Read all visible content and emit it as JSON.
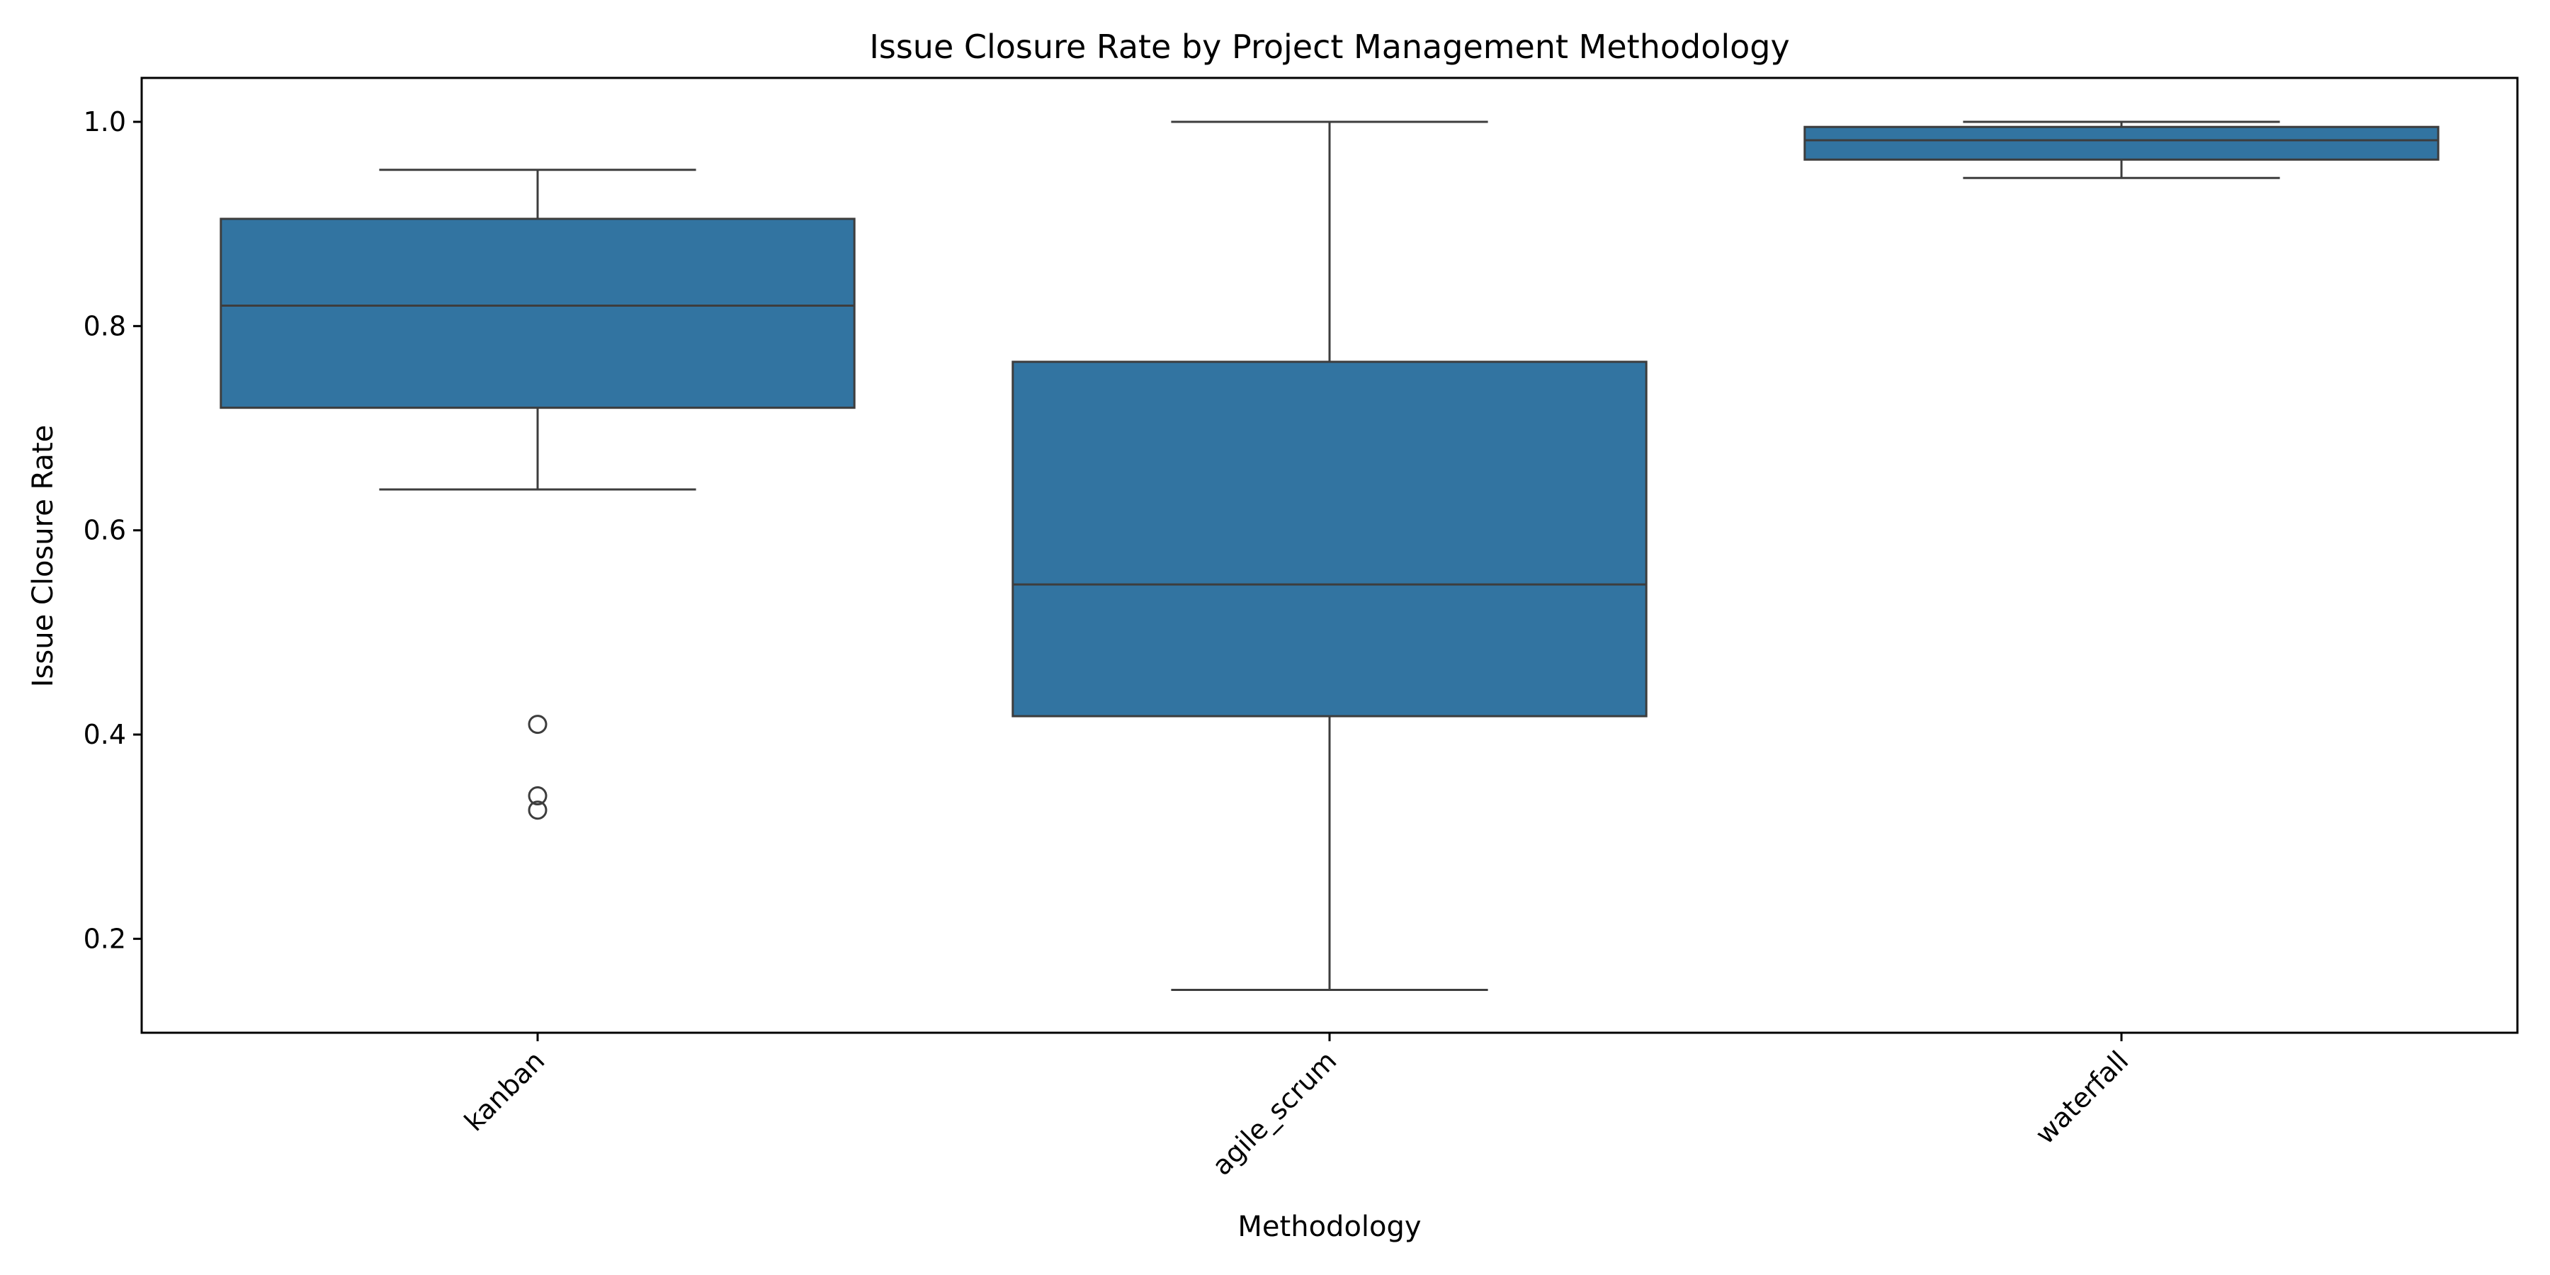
{
  "chart_data": {
    "type": "box",
    "title": "Issue Closure Rate by Project Management Methodology",
    "xlabel": "Methodology",
    "ylabel": "Issue Closure Rate",
    "ylim": [
      0.108,
      1.043
    ],
    "yticks": [
      0.2,
      0.4,
      0.6,
      0.8,
      1.0
    ],
    "ytick_labels": [
      "0.2",
      "0.4",
      "0.6",
      "0.8",
      "1.0"
    ],
    "grid": false,
    "legend": "none",
    "categories": [
      "kanban",
      "agile_scrum",
      "waterfall"
    ],
    "boxes": [
      {
        "category": "kanban",
        "whisker_low": 0.64,
        "q1": 0.72,
        "median": 0.82,
        "q3": 0.905,
        "whisker_high": 0.953,
        "outliers": [
          0.41,
          0.34,
          0.326
        ]
      },
      {
        "category": "agile_scrum",
        "whisker_low": 0.15,
        "q1": 0.418,
        "median": 0.547,
        "q3": 0.765,
        "whisker_high": 1.0,
        "outliers": []
      },
      {
        "category": "waterfall",
        "whisker_low": 0.945,
        "q1": 0.963,
        "median": 0.982,
        "q3": 0.995,
        "whisker_high": 1.0,
        "outliers": []
      }
    ],
    "colors": {
      "box_fill": "#3274a1",
      "line": "#3d3d3d",
      "axis": "#000000",
      "background": "#ffffff"
    }
  }
}
